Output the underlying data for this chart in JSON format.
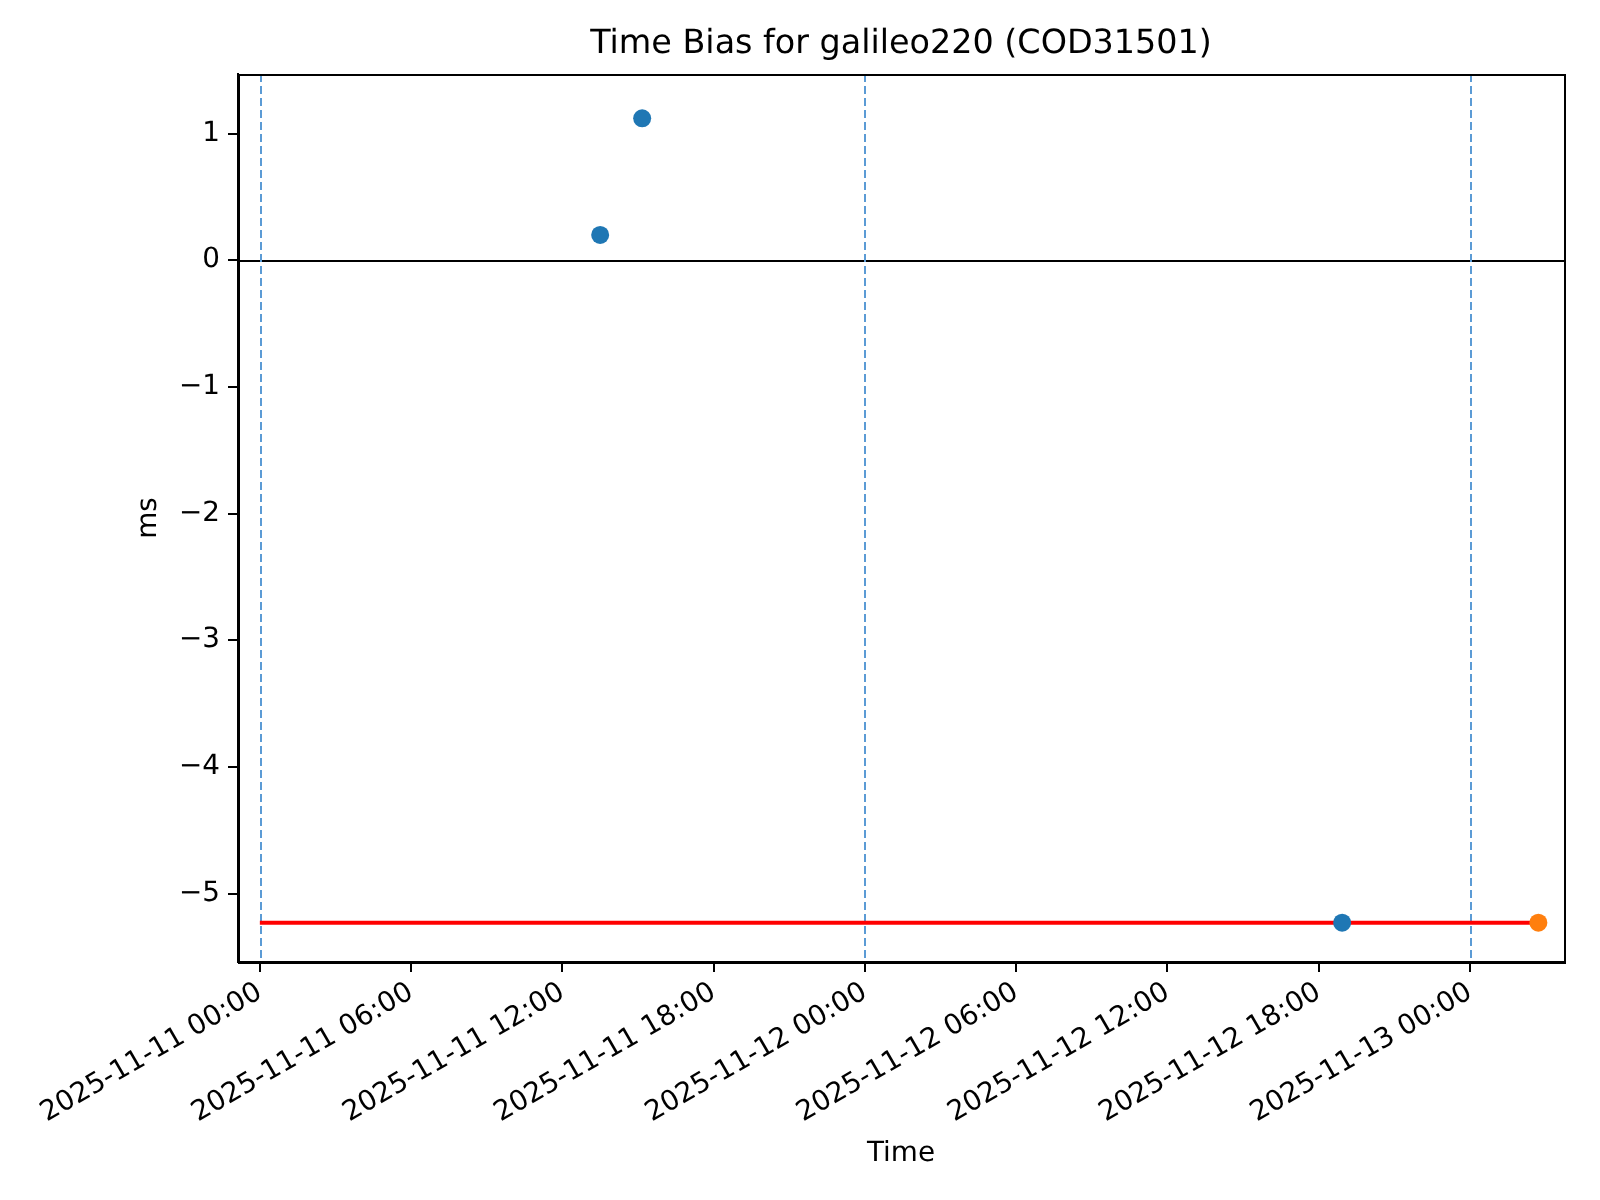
{
  "chart_data": {
    "type": "scatter",
    "title": "Time Bias for galileo220 (COD31501)",
    "xlabel": "Time",
    "ylabel": "ms",
    "xlim": [
      "2025-11-10T23:08",
      "2025-11-13T03:44"
    ],
    "xticks": [
      {
        "value": "2025-11-11T00:00",
        "label": "2025-11-11 00:00"
      },
      {
        "value": "2025-11-11T06:00",
        "label": "2025-11-11 06:00"
      },
      {
        "value": "2025-11-11T12:00",
        "label": "2025-11-11 12:00"
      },
      {
        "value": "2025-11-11T18:00",
        "label": "2025-11-11 18:00"
      },
      {
        "value": "2025-11-12T00:00",
        "label": "2025-11-12 00:00"
      },
      {
        "value": "2025-11-12T06:00",
        "label": "2025-11-12 06:00"
      },
      {
        "value": "2025-11-12T12:00",
        "label": "2025-11-12 12:00"
      },
      {
        "value": "2025-11-12T18:00",
        "label": "2025-11-12 18:00"
      },
      {
        "value": "2025-11-13T00:00",
        "label": "2025-11-13 00:00"
      }
    ],
    "ylim": [
      -5.54,
      1.47
    ],
    "yticks": [
      {
        "value": -5,
        "label": "−5"
      },
      {
        "value": -4,
        "label": "−4"
      },
      {
        "value": -3,
        "label": "−3"
      },
      {
        "value": -2,
        "label": "−2"
      },
      {
        "value": -1,
        "label": "−1"
      },
      0,
      1
    ],
    "series": [
      {
        "type": "line",
        "color": "#ff0000",
        "x": [
          "2025-11-11T00:00",
          "2025-11-13T02:43"
        ],
        "values": [
          -5.23,
          -5.23
        ],
        "marker": "none",
        "line_style": "solid"
      },
      {
        "color": "#1f77b4",
        "x": [
          "2025-11-11T13:30",
          "2025-11-11T15:10",
          "2025-11-12T18:56"
        ],
        "values": [
          0.2,
          1.12,
          -5.23
        ]
      },
      {
        "color": "#ff7f0e",
        "x": [
          "2025-11-13T02:43"
        ],
        "values": [
          -5.23
        ]
      }
    ],
    "ref_lines": [
      {
        "axis": "y",
        "value": 0,
        "color": "#000000",
        "line_style": "solid"
      },
      {
        "axis": "x",
        "value": "2025-11-11T00:00",
        "color": "#5b9bd5",
        "line_style": "dashed"
      },
      {
        "axis": "x",
        "value": "2025-11-12T00:00",
        "color": "#5b9bd5",
        "line_style": "dashed"
      },
      {
        "axis": "x",
        "value": "2025-11-13T00:00",
        "color": "#5b9bd5",
        "line_style": "dashed"
      }
    ],
    "marker": "circle",
    "grid": false,
    "legend": false
  }
}
